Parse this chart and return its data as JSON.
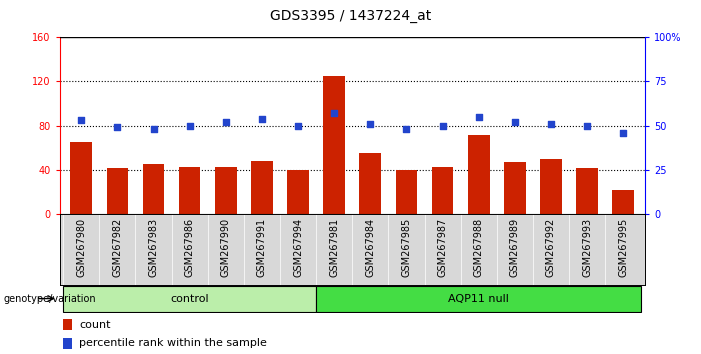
{
  "title": "GDS3395 / 1437224_at",
  "samples": [
    "GSM267980",
    "GSM267982",
    "GSM267983",
    "GSM267986",
    "GSM267990",
    "GSM267991",
    "GSM267994",
    "GSM267981",
    "GSM267984",
    "GSM267985",
    "GSM267987",
    "GSM267988",
    "GSM267989",
    "GSM267992",
    "GSM267993",
    "GSM267995"
  ],
  "counts": [
    65,
    42,
    45,
    43,
    43,
    48,
    40,
    125,
    55,
    40,
    43,
    72,
    47,
    50,
    42,
    22
  ],
  "percentiles": [
    53,
    49,
    48,
    50,
    52,
    54,
    50,
    57,
    51,
    48,
    50,
    55,
    52,
    51,
    50,
    46
  ],
  "groups": [
    {
      "label": "control",
      "start": 0,
      "end": 7,
      "color": "#bbeeaa"
    },
    {
      "label": "AQP11 null",
      "start": 7,
      "end": 16,
      "color": "#44dd44"
    }
  ],
  "bar_color": "#cc2200",
  "dot_color": "#2244cc",
  "left_ylim": [
    0,
    160
  ],
  "right_ylim": [
    0,
    100
  ],
  "left_yticks": [
    0,
    40,
    80,
    120,
    160
  ],
  "right_yticks": [
    0,
    25,
    50,
    75,
    100
  ],
  "right_yticklabels": [
    "0",
    "25",
    "50",
    "75",
    "100%"
  ],
  "grid_values": [
    40,
    80,
    120
  ],
  "bg_color": "#ffffff",
  "xtick_bg": "#d8d8d8",
  "genotype_label": "genotype/variation",
  "legend_count": "count",
  "legend_pct": "percentile rank within the sample",
  "title_fontsize": 10,
  "tick_fontsize": 7,
  "bar_width": 0.6
}
